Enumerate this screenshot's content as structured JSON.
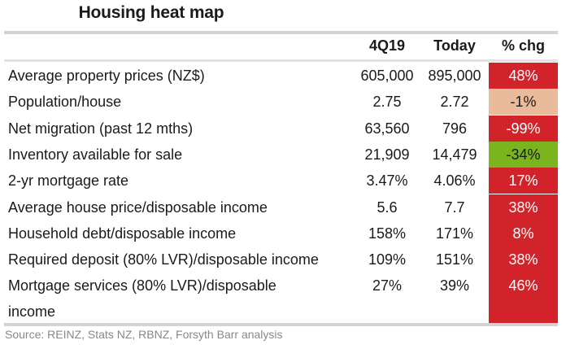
{
  "title": "Housing heat map",
  "columns": {
    "label": "",
    "col1": "4Q19",
    "col2": "Today",
    "col3": "% chg"
  },
  "colors": {
    "red": "#d2232a",
    "peach": "#e9bb9a",
    "green": "#7ab51d"
  },
  "rows": [
    {
      "label": "Average property prices (NZ$)",
      "v1": "605,000",
      "v2": "895,000",
      "chg": "48%",
      "heat": "red"
    },
    {
      "label": "Population/house",
      "v1": "2.75",
      "v2": "2.72",
      "chg": "-1%",
      "heat": "peach"
    },
    {
      "label": "Net migration (past 12 mths)",
      "v1": "63,560",
      "v2": "796",
      "chg": "-99%",
      "heat": "red"
    },
    {
      "label": "Inventory available for sale",
      "v1": "21,909",
      "v2": "14,479",
      "chg": "-34%",
      "heat": "green"
    },
    {
      "label": "2-yr mortgage rate",
      "v1": "3.47%",
      "v2": "4.06%",
      "chg": "17%",
      "heat": "red"
    },
    {
      "label": "Average house price/disposable income",
      "v1": "5.6",
      "v2": "7.7",
      "chg": "38%",
      "heat": "red"
    },
    {
      "label": "Household debt/disposable income",
      "v1": "158%",
      "v2": "171%",
      "chg": "8%",
      "heat": "red"
    },
    {
      "label": "Required deposit (80% LVR)/disposable income",
      "v1": "109%",
      "v2": "151%",
      "chg": "38%",
      "heat": "red"
    },
    {
      "label": "Mortgage services (80% LVR)/disposable",
      "label_line2": "income",
      "v1": "27%",
      "v2": "39%",
      "chg": "46%",
      "heat": "red"
    }
  ],
  "source": "Source: REINZ, Stats NZ, RBNZ, Forsyth Barr analysis"
}
